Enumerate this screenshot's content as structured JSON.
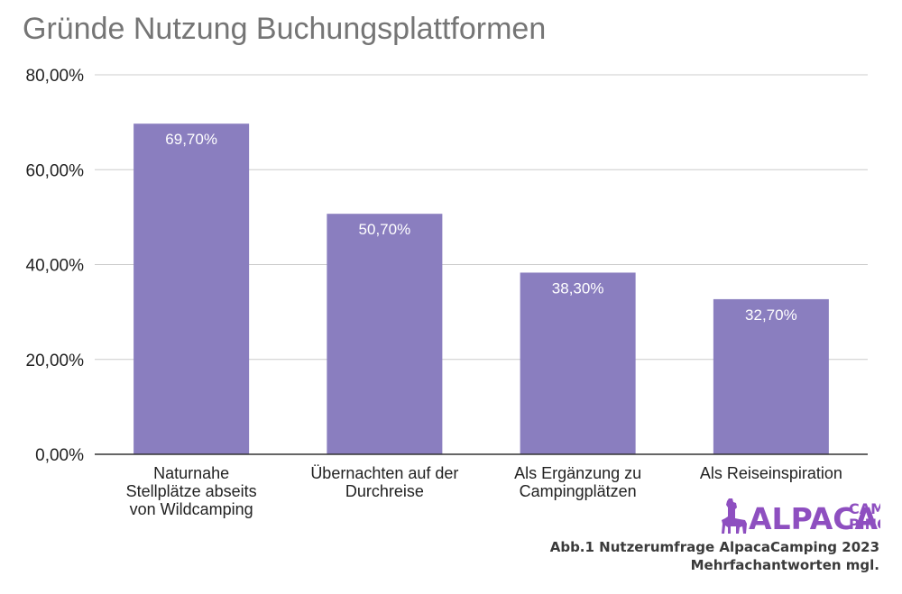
{
  "chart_data": {
    "type": "bar",
    "title": "Gründe Nutzung Buchungsplattformen",
    "categories": [
      [
        "Naturnahe",
        "Stellplätze abseits",
        "von Wildcamping"
      ],
      [
        "Übernachten auf der",
        "Durchreise"
      ],
      [
        "Als Ergänzung zu",
        "Campingplätzen"
      ],
      [
        "Als Reiseinspiration"
      ]
    ],
    "values": [
      69.7,
      50.7,
      38.3,
      32.7
    ],
    "value_labels": [
      "69,70%",
      "50,70%",
      "38,30%",
      "32,70%"
    ],
    "ylim": [
      0,
      80
    ],
    "yticks": [
      0,
      20,
      40,
      60,
      80
    ],
    "ytick_labels": [
      "0,00%",
      "20,00%",
      "40,00%",
      "60,00%",
      "80,00%"
    ],
    "grid": true,
    "legend": "none",
    "bar_color": "#8a7ebf",
    "grid_color": "#cccccc",
    "axis_color": "#333333"
  },
  "logo": {
    "text_main": "ALPACA",
    "text_top": "CAM",
    "text_bottom": "PING",
    "color": "#8e4fc0"
  },
  "caption": {
    "line1": "Abb.1 Nutzerumfrage AlpacaCamping 2023",
    "line2": "Mehrfachantworten mgl."
  }
}
